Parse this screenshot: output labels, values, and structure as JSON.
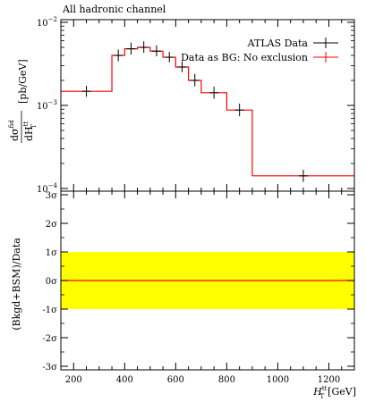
{
  "chart_data": [
    {
      "type": "line",
      "title": "All hadronic channel",
      "ylabel": "dσ^fid / dH_T^tt [pb/GeV]",
      "yscale": "log",
      "ylim": [
        0.0001,
        0.01
      ],
      "xlim": [
        150,
        1300
      ],
      "yticks": [
        {
          "value": 0.01,
          "label": "10^-2"
        },
        {
          "value": 0.001,
          "label": "10^-3"
        },
        {
          "value": 0.0001,
          "label": "10^-4"
        }
      ],
      "legend_position": "top-right",
      "series": [
        {
          "name": "ATLAS Data",
          "kind": "points_with_errors",
          "color": "#000000",
          "points": [
            {
              "x": 250,
              "y": 0.00148,
              "lo": 0.00127,
              "hi": 0.00172
            },
            {
              "x": 375,
              "y": 0.004,
              "lo": 0.0034,
              "hi": 0.0047
            },
            {
              "x": 425,
              "y": 0.0048,
              "lo": 0.0041,
              "hi": 0.0057
            },
            {
              "x": 475,
              "y": 0.005,
              "lo": 0.0043,
              "hi": 0.0059
            },
            {
              "x": 525,
              "y": 0.0045,
              "lo": 0.0039,
              "hi": 0.0053
            },
            {
              "x": 575,
              "y": 0.0038,
              "lo": 0.0033,
              "hi": 0.0044
            },
            {
              "x": 625,
              "y": 0.0029,
              "lo": 0.0025,
              "hi": 0.0034
            },
            {
              "x": 675,
              "y": 0.002,
              "lo": 0.0017,
              "hi": 0.0024
            },
            {
              "x": 750,
              "y": 0.00142,
              "lo": 0.0012,
              "hi": 0.00168
            },
            {
              "x": 850,
              "y": 0.00088,
              "lo": 0.00074,
              "hi": 0.00105
            },
            {
              "x": 1100,
              "y": 0.000142,
              "lo": 0.00012,
              "hi": 0.000168
            }
          ]
        },
        {
          "name": "Data as BG: No exclusion",
          "kind": "step",
          "color": "#ff0000",
          "bins": [
            {
              "x0": 150,
              "x1": 350,
              "y": 0.00148
            },
            {
              "x0": 350,
              "x1": 400,
              "y": 0.004
            },
            {
              "x0": 400,
              "x1": 450,
              "y": 0.0048
            },
            {
              "x0": 450,
              "x1": 500,
              "y": 0.005
            },
            {
              "x0": 500,
              "x1": 550,
              "y": 0.0045
            },
            {
              "x0": 550,
              "x1": 600,
              "y": 0.0038
            },
            {
              "x0": 600,
              "x1": 650,
              "y": 0.0029
            },
            {
              "x0": 650,
              "x1": 700,
              "y": 0.002
            },
            {
              "x0": 700,
              "x1": 800,
              "y": 0.00142
            },
            {
              "x0": 800,
              "x1": 900,
              "y": 0.00088
            },
            {
              "x0": 900,
              "x1": 1300,
              "y": 0.000142
            }
          ]
        }
      ]
    },
    {
      "type": "area",
      "ylabel": "(Bkgd+BSM)/Data",
      "xlabel": "H_T^tt [GeV]",
      "xlim": [
        150,
        1300
      ],
      "ylim": [
        -3,
        3
      ],
      "xticks": [
        200,
        400,
        600,
        800,
        1000,
        1200
      ],
      "yticks": [
        {
          "value": 3,
          "label": "3σ"
        },
        {
          "value": 2,
          "label": "2σ"
        },
        {
          "value": 1,
          "label": "1σ"
        },
        {
          "value": 0,
          "label": "0σ"
        },
        {
          "value": -1,
          "label": "-1σ"
        },
        {
          "value": -2,
          "label": "-2σ"
        },
        {
          "value": -3,
          "label": "-3σ"
        }
      ],
      "band": {
        "lo": -1,
        "hi": 1,
        "color": "#ffff00"
      },
      "line": {
        "y": 0,
        "color": "#ff0000"
      }
    }
  ],
  "top_axis_labels": {
    "title": "All hadronic channel",
    "ylabel_main": "dσ",
    "ylabel_sup": "fid",
    "ylabel_den": "dH",
    "ylabel_den_sup": "tt",
    "ylabel_den_sub": "T",
    "ylabel_unit": "[pb/GeV]",
    "y_tick_base": "10",
    "y_tick_exp_m2": "−2",
    "y_tick_exp_m3": "−3",
    "y_tick_exp_m4": "−4"
  },
  "bottom_axis_labels": {
    "ylabel": "(Bkgd+BSM)/Data",
    "xlabel_main": "H",
    "xlabel_sup": "tt",
    "xlabel_sub": "T",
    "xlabel_unit": "[GeV]",
    "sigma": "σ"
  },
  "legend": {
    "atlas": "ATLAS Data",
    "bg": "Data as BG: No exclusion"
  }
}
